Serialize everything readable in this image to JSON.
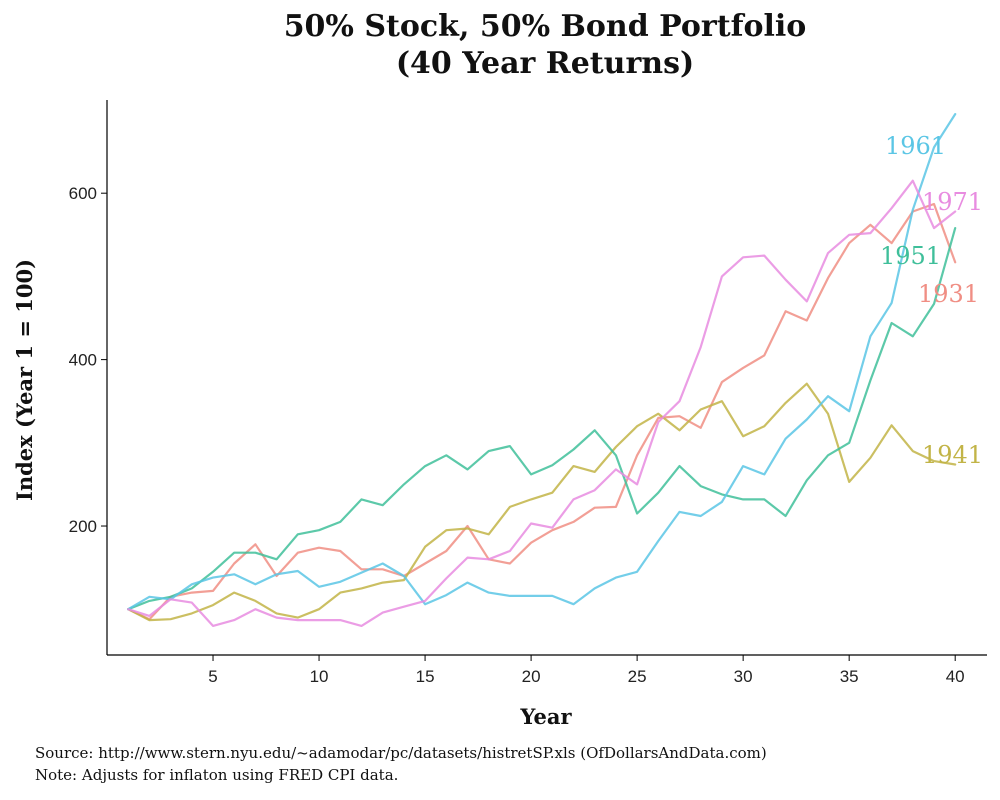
{
  "title_line1": "50% Stock, 50% Bond Portfolio",
  "title_line2": "(40 Year Returns)",
  "caption_source": "Source:  http://www.stern.nyu.edu/~adamodar/pc/datasets/histretSP.xls (OfDollarsAndData.com)",
  "caption_note": "Note:  Adjusts for inflaton using FRED CPI data.",
  "chart_data": {
    "type": "line",
    "title": "50% Stock, 50% Bond Portfolio (40 Year Returns)",
    "xlabel": "Year",
    "ylabel": "Index (Year 1 = 100)",
    "xlim": [
      0,
      41.5
    ],
    "ylim": [
      45,
      712
    ],
    "x_ticks": [
      5,
      10,
      15,
      20,
      25,
      30,
      35,
      40
    ],
    "y_ticks": [
      200,
      400,
      600
    ],
    "grid": false,
    "x": [
      1,
      2,
      3,
      4,
      5,
      6,
      7,
      8,
      9,
      10,
      11,
      12,
      13,
      14,
      15,
      16,
      17,
      18,
      19,
      20,
      21,
      22,
      23,
      24,
      25,
      26,
      27,
      28,
      29,
      30,
      31,
      32,
      33,
      34,
      35,
      36,
      37,
      38,
      39,
      40
    ],
    "series": [
      {
        "name": "1931",
        "color": "#F08E84",
        "values": [
          100,
          88,
          115,
          120,
          122,
          155,
          178,
          140,
          168,
          174,
          170,
          148,
          148,
          140,
          155,
          170,
          200,
          160,
          155,
          180,
          195,
          205,
          222,
          223,
          285,
          330,
          332,
          318,
          373,
          390,
          405,
          458,
          447,
          498,
          540,
          562,
          540,
          578,
          587,
          517
        ]
      },
      {
        "name": "1941",
        "color": "#C2B447",
        "values": [
          100,
          87,
          88,
          95,
          105,
          120,
          110,
          95,
          90,
          100,
          120,
          125,
          132,
          135,
          175,
          195,
          197,
          190,
          223,
          232,
          240,
          272,
          265,
          295,
          320,
          335,
          315,
          340,
          350,
          308,
          320,
          348,
          371,
          335,
          253,
          282,
          321,
          290,
          278,
          274
        ]
      },
      {
        "name": "1951",
        "color": "#3FBF9A",
        "values": [
          100,
          110,
          115,
          125,
          145,
          168,
          168,
          160,
          190,
          195,
          205,
          232,
          225,
          250,
          272,
          285,
          268,
          290,
          296,
          262,
          273,
          292,
          315,
          285,
          215,
          240,
          272,
          248,
          238,
          232,
          232,
          212,
          255,
          285,
          300,
          375,
          444,
          428,
          467,
          558
        ]
      },
      {
        "name": "1961",
        "color": "#5BC6E5",
        "values": [
          100,
          115,
          112,
          130,
          138,
          142,
          130,
          142,
          146,
          127,
          133,
          144,
          155,
          140,
          106,
          117,
          132,
          120,
          116,
          116,
          116,
          106,
          125,
          138,
          145,
          182,
          217,
          212,
          229,
          272,
          262,
          305,
          328,
          356,
          338,
          428,
          468,
          580,
          655,
          695
        ]
      },
      {
        "name": "1971",
        "color": "#E88CE0",
        "values": [
          100,
          92,
          112,
          108,
          80,
          87,
          100,
          90,
          87,
          87,
          87,
          80,
          96,
          103,
          110,
          137,
          162,
          160,
          170,
          203,
          198,
          232,
          243,
          268,
          250,
          325,
          350,
          415,
          500,
          523,
          525,
          496,
          470,
          528,
          550,
          552,
          582,
          615,
          558,
          578
        ]
      }
    ]
  },
  "series_labels": [
    {
      "text": "1961",
      "color": "#5BC6E5"
    },
    {
      "text": "1971",
      "color": "#E88CE0"
    },
    {
      "text": "1951",
      "color": "#3FBF9A"
    },
    {
      "text": "1931",
      "color": "#F08E84"
    },
    {
      "text": "1941",
      "color": "#C2B447"
    }
  ]
}
